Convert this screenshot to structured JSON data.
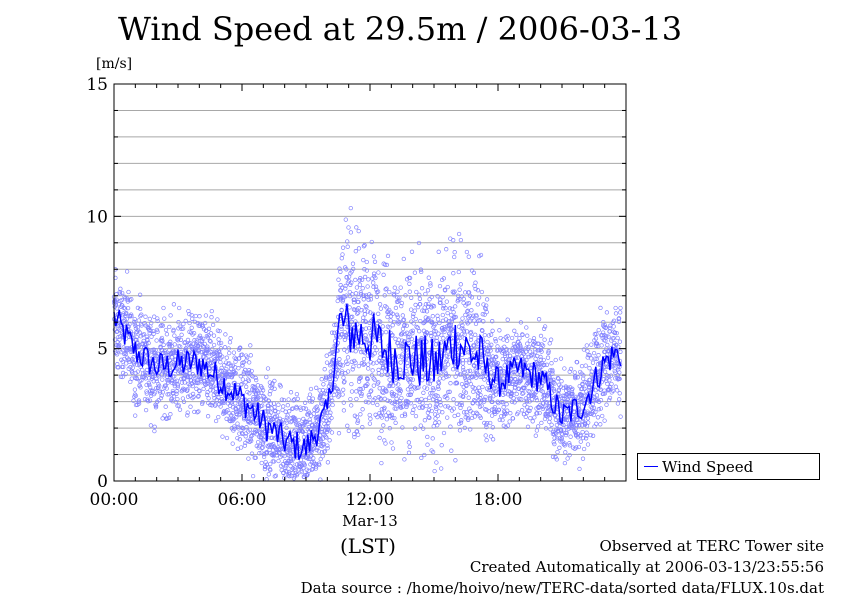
{
  "chart_data": {
    "type": "scatter",
    "title": "Wind Speed at 29.5m / 2006-03-13",
    "ylabel": "[m/s]",
    "xlabel": "(LST)",
    "xlim_hours": [
      0,
      24
    ],
    "ylim": [
      0,
      15
    ],
    "x_tick_labels": [
      "00:00",
      "06:00",
      "12:00",
      "18:00"
    ],
    "x_tick_hours": [
      0,
      6,
      12,
      18
    ],
    "date_label": "Mar-13",
    "y_tick_labels": [
      "0",
      "5",
      "10",
      "15"
    ],
    "y_ticks": [
      0,
      5,
      10,
      15
    ],
    "grid": true,
    "legend": "right",
    "series": [
      {
        "name": "Wind Speed",
        "color": "#0000ff",
        "style": "line+scatter",
        "hourly_mean": [
          [
            0,
            6.2
          ],
          [
            1,
            4.9
          ],
          [
            2,
            4.3
          ],
          [
            3,
            4.4
          ],
          [
            4,
            4.5
          ],
          [
            5,
            3.8
          ],
          [
            6,
            3.1
          ],
          [
            7,
            2.2
          ],
          [
            8,
            1.5
          ],
          [
            9,
            1.2
          ],
          [
            10,
            2.6
          ],
          [
            10.6,
            6.0
          ],
          [
            11,
            5.7
          ],
          [
            12,
            5.4
          ],
          [
            13,
            4.8
          ],
          [
            14,
            4.6
          ],
          [
            15,
            4.3
          ],
          [
            16,
            5.3
          ],
          [
            17,
            4.7
          ],
          [
            18,
            3.7
          ],
          [
            19,
            4.2
          ],
          [
            20,
            3.9
          ],
          [
            21,
            2.4
          ],
          [
            22,
            2.9
          ],
          [
            23,
            4.5
          ],
          [
            23.5,
            4.8
          ]
        ]
      }
    ]
  },
  "footer": {
    "site": "Observed at TERC Tower site",
    "created": "Created Automatically at 2006-03-13/23:55:56",
    "source": "Data source : /home/hoivo/new/TERC-data/sorted  data/FLUX.10s.dat"
  }
}
